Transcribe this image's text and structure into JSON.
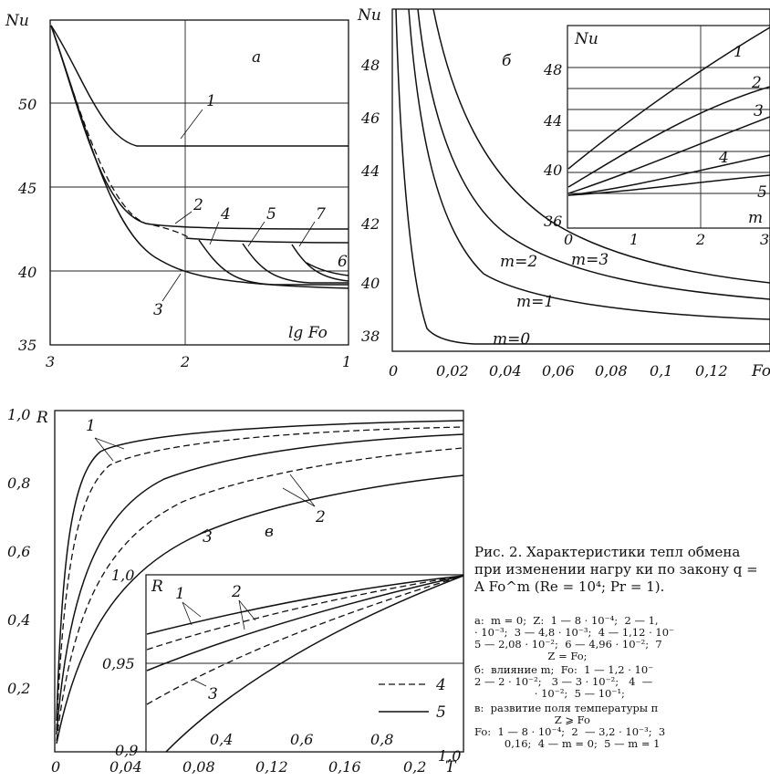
{
  "panel_a": {
    "letter": "а",
    "ylabel": "Nu",
    "xlabel": "lg Fo",
    "yticks": [
      "50",
      "45",
      "40",
      "35"
    ],
    "xticks": [
      "3",
      "2",
      "1"
    ],
    "curve_labels": [
      "1",
      "2",
      "3",
      "4",
      "5",
      "6",
      "7"
    ]
  },
  "panel_b": {
    "letter": "б",
    "ylabel": "Nu",
    "xlabel": "Fo",
    "yticks": [
      "48",
      "46",
      "44",
      "42",
      "40",
      "38"
    ],
    "xticks": [
      "0",
      "0,02",
      "0,04",
      "0,06",
      "0,08",
      "0,1",
      "0,12"
    ],
    "curve_labels": [
      "m=0",
      "m=1",
      "m=2",
      "m=3"
    ],
    "inset": {
      "ylabel": "Nu",
      "xlabel": "m",
      "yticks": [
        "48",
        "44",
        "40",
        "36"
      ],
      "xticks": [
        "0",
        "1",
        "2",
        "3"
      ],
      "curve_labels": [
        "1",
        "2",
        "3",
        "4",
        "5"
      ]
    }
  },
  "panel_v": {
    "letter": "в",
    "ylabel": "R",
    "xlabel": "T",
    "yticks": [
      "1,0",
      "0,8",
      "0,6",
      "0,4",
      "0,2"
    ],
    "xticks": [
      "0",
      "0,04",
      "0,08",
      "0,12",
      "0,16",
      "0,2"
    ],
    "curve_labels": [
      "1",
      "2",
      "3"
    ],
    "inset": {
      "ylabel": "R",
      "yticks": [
        "1,0",
        "0,95",
        "0,9"
      ],
      "xticks": [
        "0,4",
        "0,6",
        "0,8",
        "1,0"
      ],
      "curve_labels": [
        "1",
        "2",
        "3"
      ],
      "legend": [
        "4",
        "5"
      ]
    }
  },
  "caption": {
    "title": "Рис. 2. Характеристики тепл обмена при изменении нагру ки по закону q = A Fo^m (Re = 10⁴; Pr = 1).",
    "note_a": "а:  m = 0;  Z:  1 — 8 · 10⁻⁴;  2 — 1,\n· 10⁻³;  3 — 4,8 · 10⁻³;  4 — 1,12 · 10⁻\n5 — 2,08 · 10⁻²;  6 — 4,96 · 10⁻²;  7\n                      Z = Fo;",
    "note_b": "б:  влияние m;  Fo:  1 — 1,2 · 10⁻\n2 — 2 · 10⁻²;   3 — 3 · 10⁻²;   4  —\n                  · 10⁻²;  5 — 10⁻¹;",
    "note_v": "в:  развитие поля температуры п\n                        Z ⩾ Fo\nFo:  1 — 8 · 10⁻⁴;  2  — 3,2 · 10⁻³;  3\n         0,16;  4 — m = 0;  5 — m = 1"
  },
  "chart_data": [
    {
      "type": "line",
      "ylabel": "Nu",
      "xlabel": "lg Fo",
      "xlim": [
        3,
        1
      ],
      "ylim": [
        35,
        55
      ],
      "series": [
        {
          "name": "1",
          "x": [
            3,
            2.7,
            2.5,
            2.3,
            2.0,
            1.5,
            1.0
          ],
          "y": [
            54.5,
            49.5,
            46.6,
            45.8,
            45.8,
            45.8,
            45.8
          ]
        },
        {
          "name": "2",
          "x": [
            3,
            2.7,
            2.5,
            2.3,
            2.0,
            1.5,
            1.0
          ],
          "y": [
            54.5,
            47.5,
            42.5,
            41.2,
            41.0,
            41.0,
            41.0
          ]
        },
        {
          "name": "3",
          "x": [
            3,
            2.7,
            2.5,
            2.3,
            2.0,
            1.7,
            1.5,
            1.0
          ],
          "y": [
            54.5,
            47.0,
            42.0,
            40.0,
            38.5,
            37.8,
            37.5,
            37.5
          ]
        },
        {
          "name": "4",
          "x": [
            2.0,
            1.7,
            1.5,
            1.0
          ],
          "y": [
            40.0,
            39.9,
            39.9,
            39.9
          ]
        },
        {
          "name": "5",
          "x": [
            1.7,
            1.5,
            1.0
          ],
          "y": [
            39.8,
            39.7,
            39.7
          ]
        },
        {
          "name": "6",
          "x": [
            1.3,
            1.0
          ],
          "y": [
            38.5,
            38.0
          ]
        },
        {
          "name": "7",
          "x": [
            1.35,
            1.0
          ],
          "y": [
            39.7,
            39.7
          ]
        }
      ]
    },
    {
      "type": "line",
      "ylabel": "Nu",
      "xlabel": "Fo",
      "xlim": [
        0,
        0.14
      ],
      "ylim": [
        37,
        50
      ],
      "series": [
        {
          "name": "m=0",
          "x": [
            0.002,
            0.005,
            0.01,
            0.015,
            0.02,
            0.03,
            0.14
          ],
          "y": [
            50.0,
            44.0,
            40.0,
            38.5,
            37.7,
            37.5,
            37.5
          ]
        },
        {
          "name": "m=1",
          "x": [
            0.005,
            0.01,
            0.02,
            0.04,
            0.06,
            0.08,
            0.1,
            0.14
          ],
          "y": [
            50.0,
            45.5,
            41.5,
            39.5,
            38.9,
            38.6,
            38.4,
            38.2
          ]
        },
        {
          "name": "m=2",
          "x": [
            0.007,
            0.01,
            0.02,
            0.04,
            0.06,
            0.08,
            0.1,
            0.14
          ],
          "y": [
            50.0,
            47.0,
            43.0,
            40.5,
            39.6,
            39.1,
            38.9,
            38.6
          ]
        },
        {
          "name": "m=3",
          "x": [
            0.011,
            0.02,
            0.04,
            0.06,
            0.08,
            0.1,
            0.14
          ],
          "y": [
            50.0,
            45.0,
            41.5,
            40.3,
            39.8,
            39.4,
            39.0
          ]
        }
      ]
    },
    {
      "type": "line",
      "ylabel": "Nu",
      "xlabel": "m",
      "xlim": [
        0,
        3
      ],
      "ylim": [
        36,
        50
      ],
      "series": [
        {
          "name": "1",
          "x": [
            0,
            1,
            2,
            3
          ],
          "y": [
            40.0,
            43.5,
            46.5,
            49.2
          ]
        },
        {
          "name": "2",
          "x": [
            0,
            1,
            2,
            3
          ],
          "y": [
            38.0,
            41.0,
            43.8,
            46.2
          ]
        },
        {
          "name": "3",
          "x": [
            0,
            1,
            2,
            3
          ],
          "y": [
            37.7,
            39.7,
            41.8,
            43.8
          ]
        },
        {
          "name": "4",
          "x": [
            0,
            1,
            2,
            3
          ],
          "y": [
            37.5,
            38.6,
            39.8,
            41.0
          ]
        },
        {
          "name": "5",
          "x": [
            0,
            1,
            2,
            3
          ],
          "y": [
            37.5,
            38.1,
            38.7,
            39.4
          ]
        }
      ]
    },
    {
      "type": "line",
      "ylabel": "R",
      "xlabel": "T",
      "xlim": [
        0,
        0.22
      ],
      "ylim": [
        0,
        1.0
      ],
      "series": [
        {
          "name": "1",
          "x": [
            0.001,
            0.005,
            0.01,
            0.02,
            0.04,
            0.08,
            0.12,
            0.16,
            0.2,
            0.22
          ],
          "y": [
            0.1,
            0.6,
            0.8,
            0.88,
            0.91,
            0.94,
            0.95,
            0.96,
            0.965,
            0.97
          ]
        },
        {
          "name": "2",
          "x": [
            0.001,
            0.01,
            0.02,
            0.04,
            0.08,
            0.12,
            0.16,
            0.2,
            0.22
          ],
          "y": [
            0.08,
            0.5,
            0.68,
            0.78,
            0.85,
            0.89,
            0.92,
            0.94,
            0.95
          ]
        },
        {
          "name": "3",
          "x": [
            0.001,
            0.01,
            0.02,
            0.04,
            0.08,
            0.12,
            0.16,
            0.2,
            0.22
          ],
          "y": [
            0.05,
            0.38,
            0.56,
            0.67,
            0.76,
            0.81,
            0.84,
            0.87,
            0.88
          ]
        }
      ]
    },
    {
      "type": "line",
      "ylabel": "R",
      "xlim": [
        0.2,
        1.0
      ],
      "ylim": [
        0.9,
        1.0
      ],
      "legend": [
        "4",
        "5"
      ],
      "series": [
        {
          "name": "1",
          "x": [
            0.2,
            0.4,
            0.6,
            0.8,
            1.0
          ],
          "y": [
            0.966,
            0.978,
            0.988,
            0.995,
            1.0
          ]
        },
        {
          "name": "2",
          "x": [
            0.2,
            0.4,
            0.6,
            0.8,
            1.0
          ],
          "y": [
            0.946,
            0.966,
            0.981,
            0.992,
            1.0
          ]
        },
        {
          "name": "3",
          "x": [
            0.24,
            0.4,
            0.6,
            0.8,
            1.0
          ],
          "y": [
            0.9,
            0.938,
            0.966,
            0.986,
            1.0
          ]
        }
      ]
    }
  ]
}
